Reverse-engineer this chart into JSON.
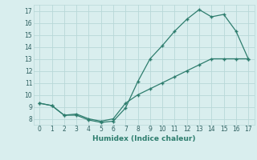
{
  "xlabel": "Humidex (Indice chaleur)",
  "ylabel": "",
  "xlim": [
    -0.5,
    17.5
  ],
  "ylim": [
    7.5,
    17.5
  ],
  "xticks": [
    0,
    1,
    2,
    3,
    4,
    5,
    6,
    7,
    8,
    9,
    10,
    11,
    12,
    13,
    14,
    15,
    16,
    17
  ],
  "yticks": [
    8,
    9,
    10,
    11,
    12,
    13,
    14,
    15,
    16,
    17
  ],
  "line_color": "#2e7d6e",
  "bg_color": "#d9eeee",
  "grid_color": "#b8d8d8",
  "series1_x": [
    0,
    1,
    2,
    3,
    4,
    5,
    6,
    7,
    8,
    9,
    10,
    11,
    12,
    13,
    14,
    15,
    16,
    17
  ],
  "series1_y": [
    9.3,
    9.1,
    8.3,
    8.3,
    7.9,
    7.7,
    7.8,
    8.9,
    11.1,
    13.0,
    14.1,
    15.3,
    16.3,
    17.1,
    16.5,
    16.7,
    15.3,
    13.0
  ],
  "series2_x": [
    0,
    1,
    2,
    3,
    4,
    5,
    6,
    7,
    8,
    9,
    10,
    11,
    12,
    13,
    14,
    15,
    16,
    17
  ],
  "series2_y": [
    9.3,
    9.1,
    8.3,
    8.4,
    8.0,
    7.8,
    8.0,
    9.3,
    10.0,
    10.5,
    11.0,
    11.5,
    12.0,
    12.5,
    13.0,
    13.0,
    13.0,
    13.0
  ]
}
